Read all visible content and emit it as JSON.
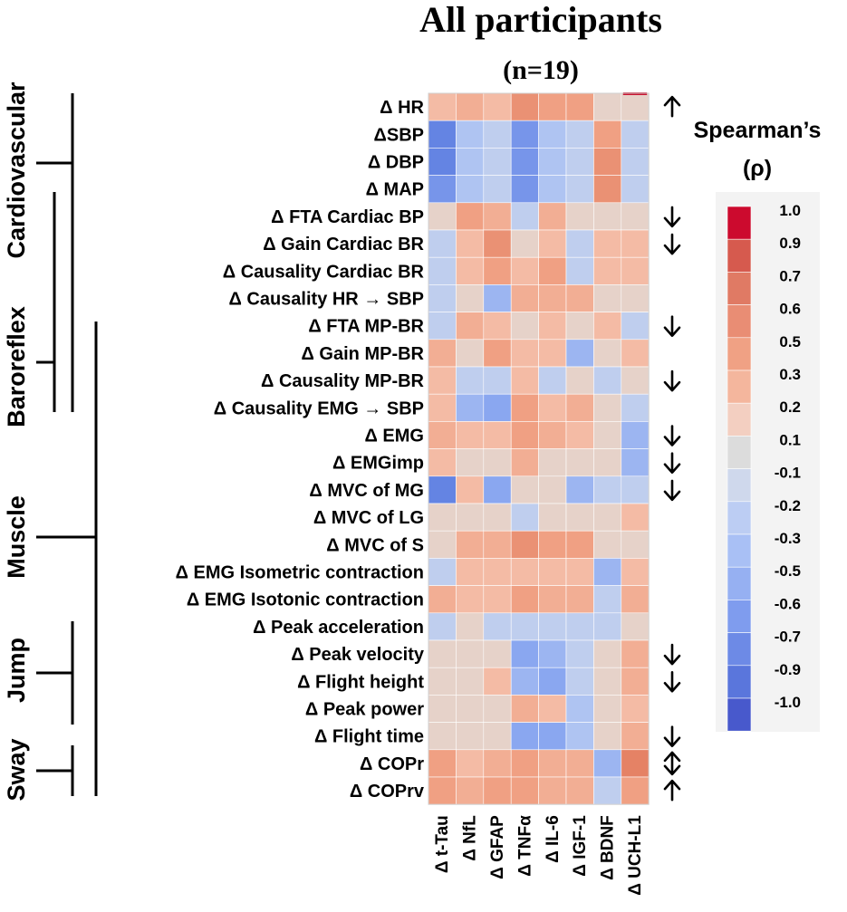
{
  "chart_data": {
    "type": "heatmap",
    "title": "All participants",
    "subtitle": "(n=19)",
    "columns": [
      "Δ t-Tau",
      "Δ NfL",
      "Δ GFAP",
      "Δ TNFα",
      "Δ IL-6",
      "Δ IGF-1",
      "Δ BDNF",
      "Δ UCH-L1"
    ],
    "rows": [
      "Δ HR",
      "ΔSBP",
      "Δ DBP",
      "Δ MAP",
      "Δ FTA Cardiac BP",
      "Δ Gain Cardiac BR",
      "Δ Causality Cardiac BR",
      "Δ Causality HR → SBP",
      "Δ FTA MP-BR",
      "Δ Gain MP-BR",
      "Δ Causality MP-BR",
      "Δ Causality EMG → SBP",
      "Δ EMG",
      "Δ EMGimp",
      "Δ  MVC of MG",
      "Δ  MVC of LG",
      "Δ  MVC of S",
      "Δ EMG Isometric contraction",
      "Δ EMG Isotonic contraction",
      "Δ Peak acceleration",
      "Δ Peak velocity",
      "Δ Flight height",
      "Δ Peak power",
      "Δ Flight time",
      "Δ COPr",
      "Δ COPrv"
    ],
    "values": [
      [
        0.3,
        0.4,
        0.3,
        0.6,
        0.5,
        0.5,
        0.1,
        0.1
      ],
      [
        -0.7,
        -0.3,
        -0.2,
        -0.6,
        -0.3,
        -0.2,
        0.5,
        -0.2
      ],
      [
        -0.7,
        -0.3,
        -0.2,
        -0.6,
        -0.3,
        -0.2,
        0.6,
        -0.2
      ],
      [
        -0.6,
        -0.3,
        -0.2,
        -0.6,
        -0.3,
        -0.2,
        0.6,
        -0.2
      ],
      [
        0.1,
        0.5,
        0.4,
        -0.2,
        0.4,
        0.1,
        0.1,
        0.1
      ],
      [
        -0.2,
        0.3,
        0.6,
        0.1,
        0.3,
        -0.2,
        0.3,
        0.3
      ],
      [
        -0.2,
        0.3,
        0.5,
        0.3,
        0.5,
        -0.2,
        0.3,
        0.3
      ],
      [
        -0.2,
        0.1,
        -0.4,
        0.4,
        0.4,
        0.4,
        0.1,
        0.1
      ],
      [
        -0.2,
        0.4,
        0.3,
        0.1,
        0.3,
        0.1,
        0.3,
        -0.2
      ],
      [
        0.4,
        0.1,
        0.5,
        0.3,
        0.3,
        -0.4,
        0.1,
        0.3
      ],
      [
        0.3,
        -0.2,
        -0.2,
        0.3,
        -0.2,
        0.1,
        -0.2,
        0.1
      ],
      [
        0.3,
        -0.4,
        -0.5,
        0.5,
        0.3,
        0.4,
        0.1,
        -0.2
      ],
      [
        0.4,
        0.3,
        0.3,
        0.5,
        0.4,
        0.3,
        0.1,
        -0.4
      ],
      [
        0.3,
        0.1,
        0.1,
        0.4,
        0.1,
        0.1,
        0.1,
        -0.4
      ],
      [
        -0.7,
        0.3,
        -0.5,
        0.1,
        0.1,
        -0.4,
        -0.2,
        -0.2
      ],
      [
        0.1,
        0.1,
        0.1,
        -0.2,
        0.1,
        0.1,
        0.1,
        0.3
      ],
      [
        0.1,
        0.4,
        0.4,
        0.6,
        0.5,
        0.5,
        0.1,
        0.1
      ],
      [
        -0.2,
        0.3,
        0.3,
        0.3,
        0.3,
        0.3,
        -0.4,
        0.3
      ],
      [
        0.4,
        0.3,
        0.3,
        0.5,
        0.4,
        0.4,
        -0.2,
        0.4
      ],
      [
        -0.2,
        0.1,
        -0.2,
        -0.2,
        -0.2,
        -0.2,
        -0.2,
        0.1
      ],
      [
        0.1,
        0.1,
        0.1,
        -0.5,
        -0.4,
        -0.2,
        0.1,
        0.4
      ],
      [
        0.1,
        0.1,
        0.3,
        -0.4,
        -0.5,
        -0.2,
        0.1,
        0.4
      ],
      [
        0.1,
        0.1,
        0.1,
        0.4,
        0.3,
        -0.3,
        0.1,
        0.3
      ],
      [
        0.1,
        0.1,
        0.1,
        -0.5,
        -0.5,
        -0.3,
        0.1,
        0.4
      ],
      [
        0.5,
        0.3,
        0.4,
        0.5,
        0.4,
        0.4,
        -0.4,
        0.7
      ],
      [
        0.5,
        0.4,
        0.5,
        0.5,
        0.4,
        0.4,
        -0.2,
        0.5
      ]
    ],
    "arrows": [
      "up",
      "",
      "",
      "",
      "down",
      "down",
      "",
      "",
      "down",
      "",
      "down",
      "",
      "down",
      "down",
      "down",
      "",
      "",
      "",
      "",
      "",
      "down",
      "down",
      "",
      "down",
      "updown",
      "up"
    ],
    "groups": [
      "Cardiovascular",
      "Baroreflex",
      "Muscle",
      "Jump",
      "Sway"
    ],
    "legend": {
      "title_line1": "Spearman’s",
      "title_line2": "(ρ)",
      "ticks": [
        "1.0",
        "0.9",
        "0.7",
        "0.6",
        "0.5",
        "0.3",
        "0.2",
        "0.1",
        "-0.1",
        "-0.2",
        "-0.3",
        "-0.5",
        "-0.6",
        "-0.7",
        "-0.9",
        "-1.0"
      ],
      "colors": [
        "#cc0a2e",
        "#d65a4e",
        "#e07a64",
        "#e98d74",
        "#f0a184",
        "#f4b69d",
        "#f3cfc1",
        "#dcdcdc",
        "#cfd8ec",
        "#bccdf3",
        "#a9c0f5",
        "#96b0f2",
        "#7f9cee",
        "#6d8ae6",
        "#5a76dc",
        "#4859cc"
      ]
    },
    "color_scale": {
      "min": -1.0,
      "max": 1.0,
      "colors": [
        "#4155c9",
        "#5b7be0",
        "#8aa7f0",
        "#b8cbf2",
        "#dcdcdc",
        "#f5c2ad",
        "#f0a083",
        "#e27a5e",
        "#cf0b2d"
      ]
    }
  }
}
